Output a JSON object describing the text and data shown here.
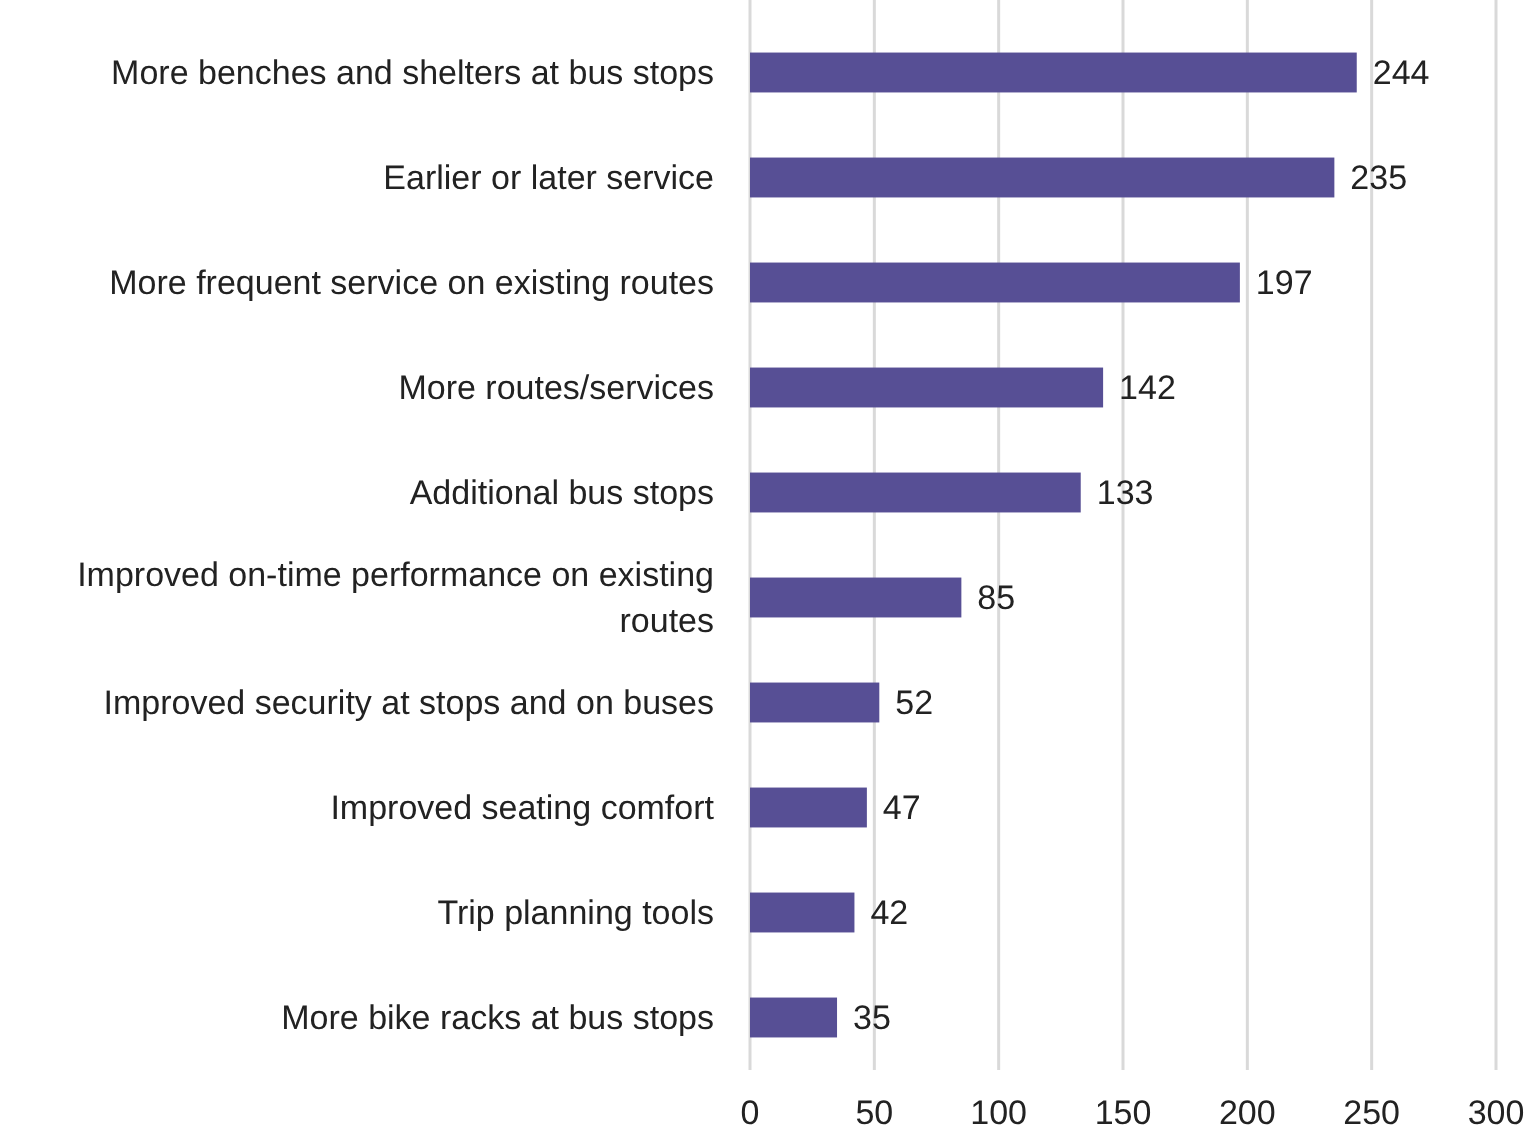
{
  "chart_data": {
    "type": "bar",
    "orientation": "horizontal",
    "categories": [
      "More benches and shelters at bus stops",
      "Earlier or later service",
      "More frequent service on existing routes",
      "More routes/services",
      "Additional bus stops",
      "Improved on-time performance on existing routes",
      "Improved security at stops and on buses",
      "Improved seating comfort",
      "Trip planning tools",
      "More bike racks at bus stops"
    ],
    "values": [
      244,
      235,
      197,
      142,
      133,
      85,
      52,
      47,
      42,
      35
    ],
    "color": "#574f95",
    "xlim": [
      0,
      300
    ],
    "xticks": [
      0,
      50,
      100,
      150,
      200,
      250,
      300
    ],
    "grid": "x",
    "data_labels": true
  }
}
